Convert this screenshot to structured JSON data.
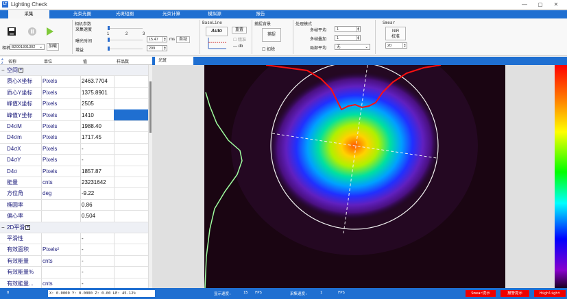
{
  "window": {
    "title": "Lighting Check",
    "app_icon": "LT",
    "minimize": "—",
    "maximize": "▢",
    "close": "✕"
  },
  "tabs": [
    "采集",
    "光束光圈",
    "光斑短圈",
    "光束计算",
    "模拟源",
    "报告"
  ],
  "ribbon": {
    "camera_label": "相机",
    "camera_value": "B2001301302",
    "load_button": "加载",
    "params_title": "相机参数",
    "capture_speed_label": "采集速度",
    "speed_ticks": [
      "1",
      "2",
      "3"
    ],
    "exposure_label": "曝光时间",
    "exposure_value": "15.47",
    "exposure_unit": "ms",
    "auto_button": "自动",
    "gain_label": "增益",
    "gain_value": "299",
    "baseline_title": "BaseLine",
    "auto_label": "Auto",
    "reset_button": "重置",
    "precise_label": "精准",
    "db_label": "— db",
    "bg_title": "捕捉背景",
    "capture_button": "捕捉",
    "deduct_label": "扣除",
    "proc_title": "处理模式",
    "multi_avg_label": "多帧平均",
    "multi_avg_value": "1",
    "multi_add_label": "多帧叠加",
    "multi_add_value": "1",
    "local_avg_label": "局部平均",
    "local_avg_value": "无",
    "smear_title": "Smear",
    "smear_button": "NIR\n校准",
    "smear_value": "20"
  },
  "panel": {
    "headers": [
      "名称",
      "单位",
      "值",
      "样品数"
    ],
    "categories": {
      "spatial": "空间",
      "smooth": "2D平滑"
    },
    "rows": [
      {
        "name": "质心X坐标",
        "unit": "Pixels",
        "value": "2463.7704"
      },
      {
        "name": "质心Y坐标",
        "unit": "Pixels",
        "value": "1375.8901"
      },
      {
        "name": "峰值X坐标",
        "unit": "Pixels",
        "value": "2505"
      },
      {
        "name": "峰值Y坐标",
        "unit": "Pixels",
        "value": "1410"
      },
      {
        "name": "D4σM",
        "unit": "Pixels",
        "value": "1988.40"
      },
      {
        "name": "D4σm",
        "unit": "Pixels",
        "value": "1717.45"
      },
      {
        "name": "D4σX",
        "unit": "Pixels",
        "value": "-"
      },
      {
        "name": "D4σY",
        "unit": "Pixels",
        "value": "-"
      },
      {
        "name": "D4σ",
        "unit": "Pixels",
        "value": "1857.87"
      },
      {
        "name": "能量",
        "unit": "cnts",
        "value": "23231642"
      },
      {
        "name": "方位角",
        "unit": "deg",
        "value": "-9.22"
      },
      {
        "name": "椭圆率",
        "unit": "",
        "value": "0.86"
      },
      {
        "name": "偏心率",
        "unit": "",
        "value": "0.504"
      }
    ],
    "rows2": [
      {
        "name": "平滑性",
        "unit": "",
        "value": "-"
      },
      {
        "name": "有效面积",
        "unit": "Pixels²",
        "value": "-"
      },
      {
        "name": "有效能量",
        "unit": "cnts",
        "value": "-"
      },
      {
        "name": "有效能量%",
        "unit": "",
        "value": "-"
      },
      {
        "name": "有效能量...",
        "unit": "cnts",
        "value": "-"
      }
    ]
  },
  "view": {
    "tab": "光斑"
  },
  "status": {
    "left_value": "0",
    "coords": "X: 0.0000  Y: 0.0000  Z: 0.00  LE: 45.12%",
    "display_speed_label": "显示速度:",
    "display_speed_value": "15",
    "fps1": "FPS",
    "capture_speed_label": "采集速度:",
    "capture_speed_value": "1",
    "fps2": "FPS",
    "alert1": "Smear提示",
    "alert2": "报警提示",
    "alert3": "Highlight"
  },
  "colors": {
    "accent": "#1f6fd1",
    "alert": "#ee0000"
  }
}
